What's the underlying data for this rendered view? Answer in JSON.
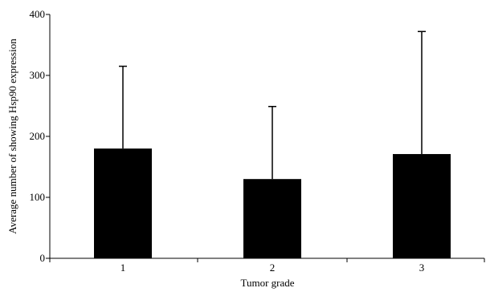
{
  "chart_data": {
    "type": "bar",
    "categories": [
      "1",
      "2",
      "3"
    ],
    "values": [
      180,
      130,
      171
    ],
    "error_upper": [
      315,
      249,
      372
    ],
    "ylim": [
      0,
      400
    ],
    "yticks": [
      "0",
      "100",
      "200",
      "300",
      "400"
    ],
    "xlabel": "Tumor grade",
    "ylabel": "Average number of showing Hsp90 expression",
    "bar_color": "#000000",
    "grid": false
  }
}
